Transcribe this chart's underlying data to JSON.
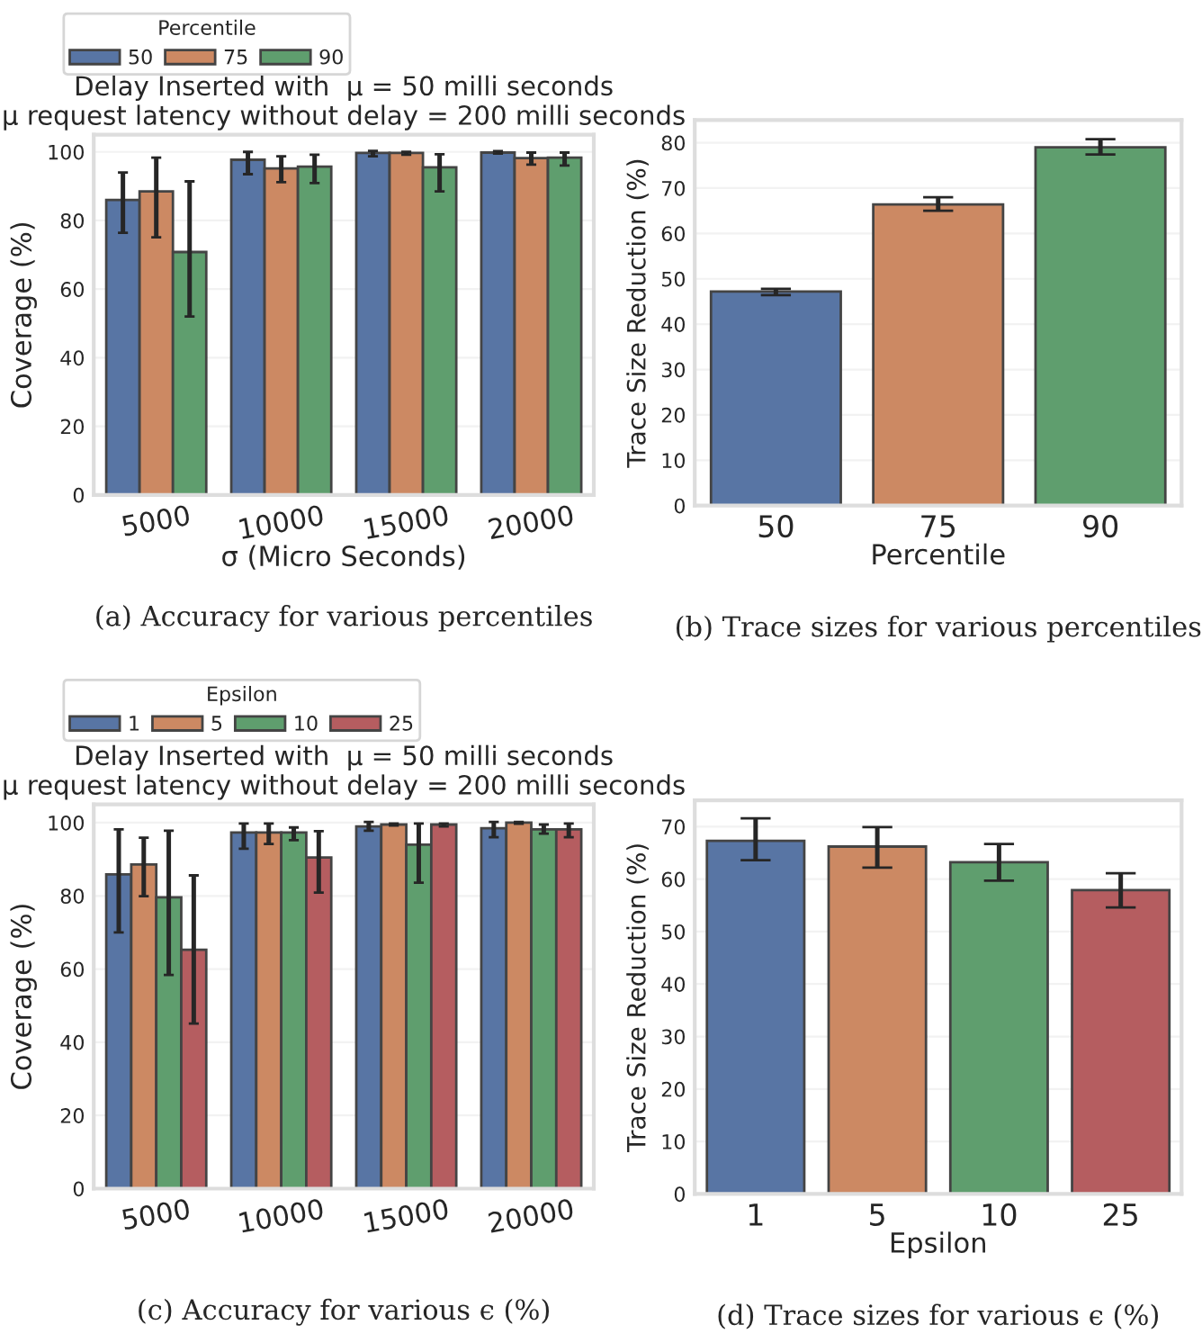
{
  "chart_data": [
    {
      "type": "bar",
      "title": "Delay Inserted with  μ = 50 milli seconds\nμ request latency without delay = 200 milli seconds",
      "xlabel": "σ (Micro Seconds)",
      "ylabel": "Coverage (%)",
      "legend_title": "Percentile",
      "legend": "top left",
      "grid": "y",
      "categories": [
        "5000",
        "10000",
        "15000",
        "20000"
      ],
      "ylim": [
        0,
        105
      ],
      "yticks": [
        0,
        20,
        40,
        60,
        80,
        100
      ],
      "series": [
        {
          "name": "50",
          "color": "#5875a4",
          "values": [
            86.0,
            97.7,
            99.7,
            99.8
          ],
          "errors": [
            [
              76.4,
              94.0
            ],
            [
              93.5,
              100.0
            ],
            [
              98.7,
              100.3
            ],
            [
              99.5,
              100.2
            ]
          ]
        },
        {
          "name": "75",
          "color": "#cc8963",
          "values": [
            88.5,
            95.2,
            99.7,
            98.2
          ],
          "errors": [
            [
              75.1,
              98.3
            ],
            [
              91.2,
              98.7
            ],
            [
              99.2,
              100.0
            ],
            [
              96.3,
              99.8
            ]
          ]
        },
        {
          "name": "90",
          "color": "#5f9e6e",
          "values": [
            70.8,
            95.7,
            95.5,
            98.3
          ],
          "errors": [
            [
              52.0,
              91.4
            ],
            [
              90.9,
              99.2
            ],
            [
              88.5,
              99.3
            ],
            [
              96.0,
              99.8
            ]
          ]
        }
      ],
      "annotations": [
        "(a) Accuracy for various percentiles"
      ]
    },
    {
      "type": "bar",
      "xlabel": "Percentile",
      "ylabel": "Trace Size Reduction (%)",
      "grid": "y",
      "categories": [
        "50",
        "75",
        "90"
      ],
      "ylim": [
        0,
        85
      ],
      "yticks": [
        0,
        10,
        20,
        30,
        40,
        50,
        60,
        70,
        80
      ],
      "values": [
        47.2,
        66.4,
        79.0
      ],
      "colors": [
        "#5875a4",
        "#cc8963",
        "#5f9e6e"
      ],
      "errors": [
        [
          46.4,
          47.8
        ],
        [
          65.0,
          68.0
        ],
        [
          77.4,
          80.8
        ]
      ],
      "annotations": [
        "(b) Trace sizes for various percentiles"
      ]
    },
    {
      "type": "bar",
      "title": "Delay Inserted with  μ = 50 milli seconds\nμ request latency without delay = 200 milli seconds",
      "ylabel": "Coverage (%)",
      "legend_title": "Epsilon",
      "legend": "top left",
      "grid": "y",
      "categories": [
        "5000",
        "10000",
        "15000",
        "20000"
      ],
      "ylim": [
        0,
        105
      ],
      "yticks": [
        0,
        20,
        40,
        60,
        80,
        100
      ],
      "series": [
        {
          "name": "1",
          "color": "#5875a4",
          "values": [
            85.9,
            97.3,
            99.0,
            98.5
          ],
          "errors": [
            [
              70.0,
              98.2
            ],
            [
              92.9,
              99.8
            ],
            [
              97.8,
              100.2
            ],
            [
              96.0,
              100.2
            ]
          ]
        },
        {
          "name": "5",
          "color": "#cc8963",
          "values": [
            88.6,
            97.3,
            99.5,
            100.0
          ],
          "errors": [
            [
              79.9,
              95.9
            ],
            [
              94.2,
              99.8
            ],
            [
              99.2,
              99.8
            ],
            [
              99.7,
              100.2
            ]
          ]
        },
        {
          "name": "10",
          "color": "#5f9e6e",
          "values": [
            79.6,
            97.3,
            94.0,
            98.2
          ],
          "errors": [
            [
              58.4,
              97.8
            ],
            [
              95.2,
              98.7
            ],
            [
              83.6,
              99.8
            ],
            [
              97.0,
              99.5
            ]
          ]
        },
        {
          "name": "25",
          "color": "#b55d60",
          "values": [
            65.3,
            90.5,
            99.5,
            98.2
          ],
          "errors": [
            [
              45.1,
              85.6
            ],
            [
              80.9,
              97.7
            ],
            [
              99.0,
              99.8
            ],
            [
              96.0,
              99.8
            ]
          ]
        }
      ],
      "annotations": [
        "(c) Accuracy for various ϵ (%)"
      ]
    },
    {
      "type": "bar",
      "xlabel": "Epsilon",
      "ylabel": "Trace Size Reduction (%)",
      "grid": "y",
      "categories": [
        "1",
        "5",
        "10",
        "25"
      ],
      "ylim": [
        0,
        75
      ],
      "yticks": [
        0,
        10,
        20,
        30,
        40,
        50,
        60,
        70
      ],
      "values": [
        67.3,
        66.2,
        63.2,
        57.9
      ],
      "colors": [
        "#5875a4",
        "#cc8963",
        "#5f9e6e",
        "#b55d60"
      ],
      "errors": [
        [
          63.6,
          71.6
        ],
        [
          62.2,
          69.9
        ],
        [
          59.7,
          66.7
        ],
        [
          54.6,
          61.1
        ]
      ],
      "annotations": [
        "(d) Trace sizes for various ϵ (%)"
      ]
    }
  ]
}
